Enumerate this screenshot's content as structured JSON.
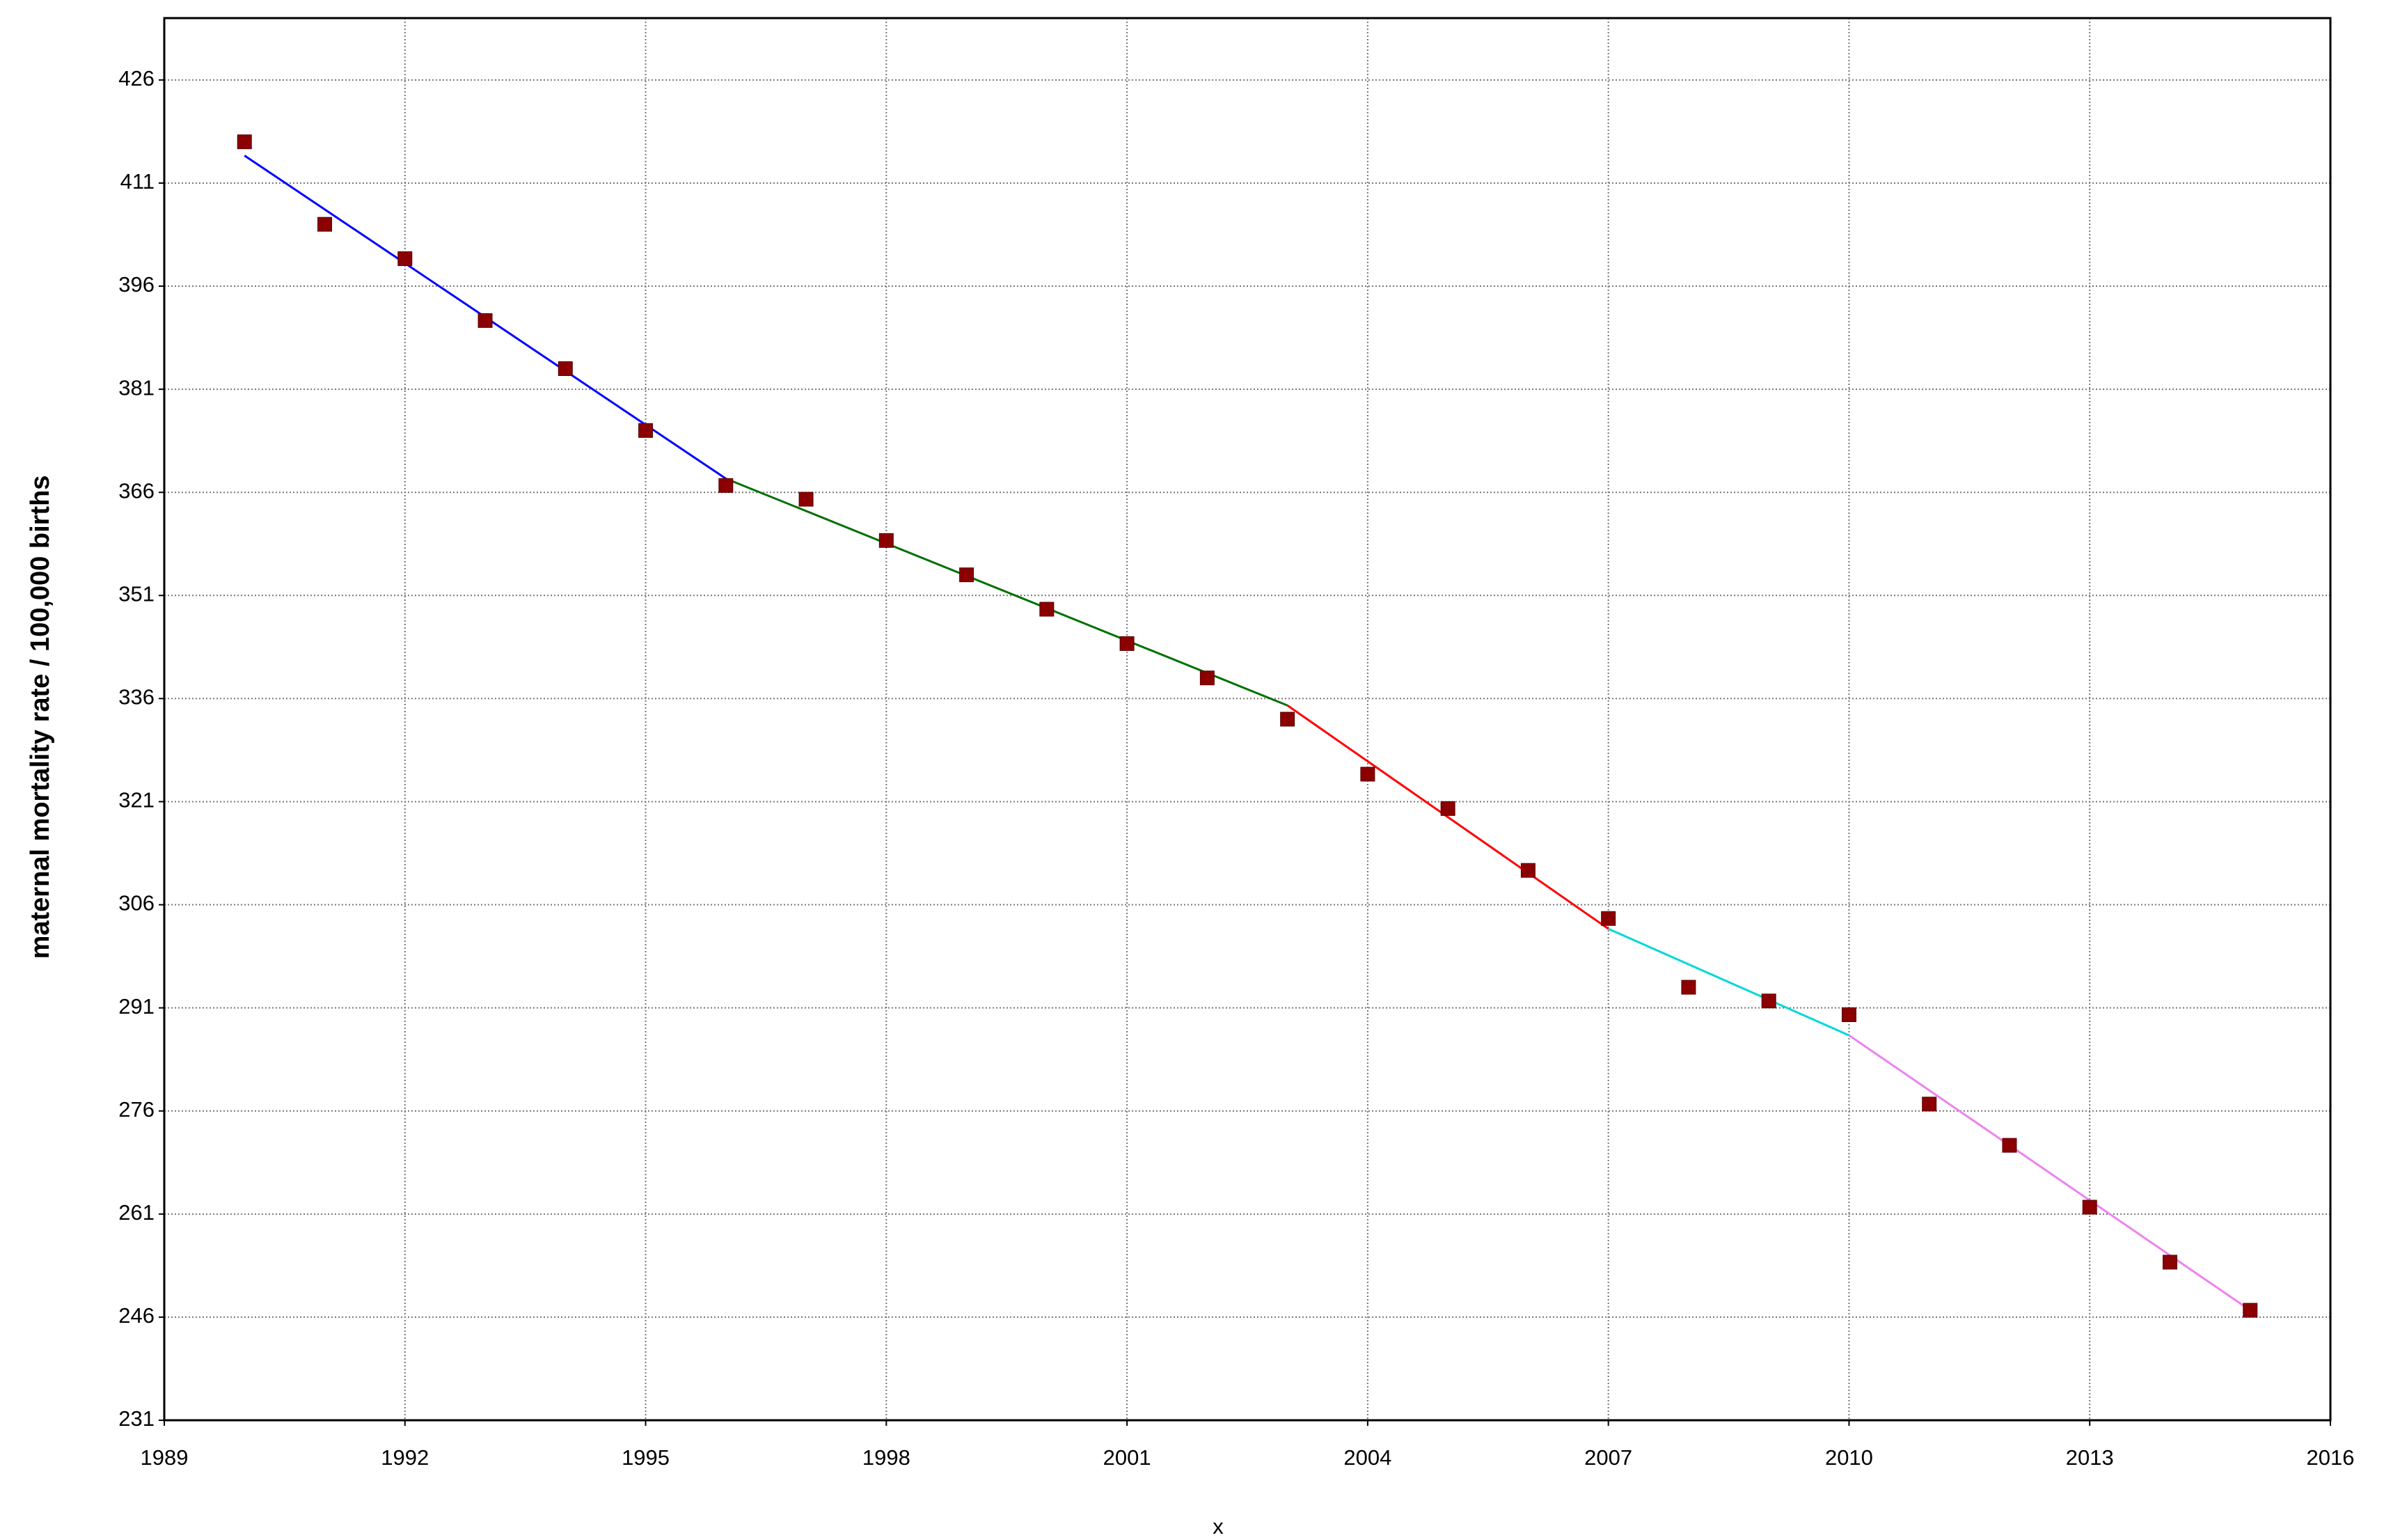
{
  "chart_data": {
    "type": "scatter",
    "ylabel": "maternal mortality rate / 100,000 births",
    "xlabel": "x",
    "xlim": [
      1989,
      2016
    ],
    "xticks": [
      1989,
      1992,
      1995,
      1998,
      2001,
      2004,
      2007,
      2010,
      2013,
      2016
    ],
    "ylim": [
      231,
      435
    ],
    "yticks": [
      231,
      246,
      261,
      276,
      291,
      306,
      321,
      336,
      351,
      366,
      381,
      396,
      411,
      426
    ],
    "grid": true,
    "points": {
      "color": "#8b0000",
      "x": [
        1990,
        1991,
        1992,
        1993,
        1994,
        1995,
        1996,
        1997,
        1998,
        1999,
        2000,
        2001,
        2002,
        2003,
        2004,
        2005,
        2006,
        2007,
        2008,
        2009,
        2010,
        2011,
        2012,
        2013,
        2014,
        2015
      ],
      "values": [
        417,
        405,
        400,
        391,
        384,
        375,
        367,
        365,
        359,
        354,
        349,
        344,
        339,
        333,
        325,
        320,
        311,
        304,
        294,
        292,
        290,
        277,
        271,
        262,
        254,
        247
      ]
    },
    "segments": [
      {
        "color": "#0000ff",
        "x": [
          1990,
          1996
        ],
        "values": [
          415,
          368
        ]
      },
      {
        "color": "#007000",
        "x": [
          1996,
          2003
        ],
        "values": [
          368,
          335
        ]
      },
      {
        "color": "#ff0000",
        "x": [
          2003,
          2007
        ],
        "values": [
          335,
          302.5
        ]
      },
      {
        "color": "#00d8d8",
        "x": [
          2007,
          2010
        ],
        "values": [
          302.5,
          287
        ]
      },
      {
        "color": "#ee82ee",
        "x": [
          2010,
          2015
        ],
        "values": [
          287,
          247
        ]
      }
    ]
  }
}
